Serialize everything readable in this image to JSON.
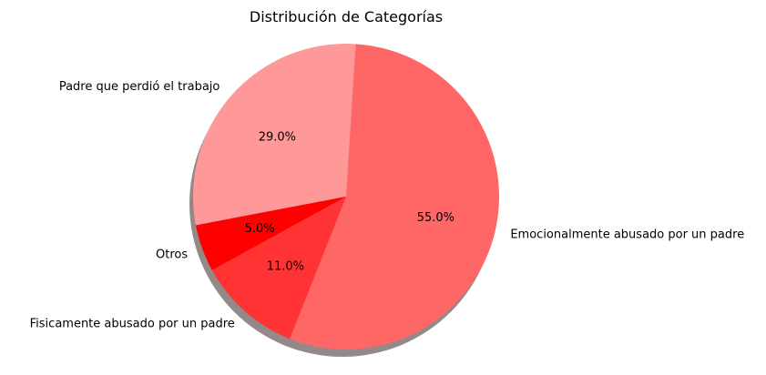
{
  "chart_data": {
    "type": "pie",
    "title": "Distribución de Categorías",
    "categories": [
      "Emocionalmente abusado por un padre",
      "Padre que perdió el trabajo",
      "Otros",
      "Fisicamente abusado por un padre"
    ],
    "values": [
      55.0,
      29.0,
      5.0,
      11.0
    ],
    "percent_labels": [
      "55.0%",
      "29.0%",
      "5.0%",
      "11.0%"
    ],
    "colors": [
      "#ff6666",
      "#ff9999",
      "#ff0000",
      "#ff3333"
    ],
    "shadow": true,
    "legend": "none"
  }
}
